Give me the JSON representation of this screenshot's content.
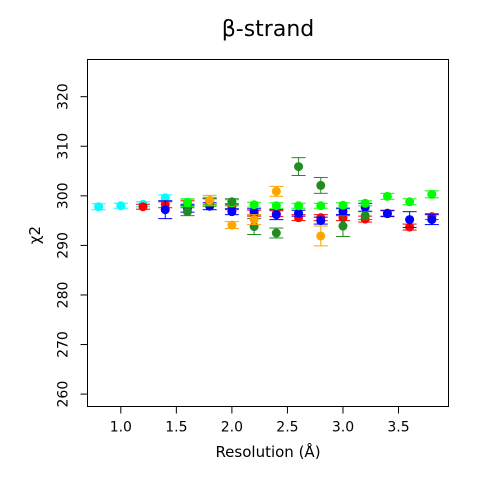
{
  "chart_data": {
    "type": "scatter",
    "title": "β-strand",
    "xlabel": "Resolution (Å)",
    "ylabel": "χ2",
    "xlim": [
      0.7,
      3.95
    ],
    "ylim": [
      257.5,
      327.5
    ],
    "xticks": [
      1.0,
      1.5,
      2.0,
      2.5,
      3.0,
      3.5
    ],
    "xtick_labels": [
      "1.0",
      "1.5",
      "2.0",
      "2.5",
      "3.0",
      "3.5"
    ],
    "yticks": [
      260,
      270,
      280,
      290,
      300,
      310,
      320
    ],
    "ytick_labels": [
      "260",
      "270",
      "280",
      "290",
      "300",
      "310",
      "320"
    ],
    "grid": false,
    "error_bars": true,
    "series": [
      {
        "color": "#00ffff",
        "points": [
          {
            "x": 0.8,
            "y": 297.8,
            "err": 0.6
          },
          {
            "x": 1.0,
            "y": 298.0,
            "err": 0.5
          },
          {
            "x": 1.2,
            "y": 298.3,
            "err": 0.5
          },
          {
            "x": 1.4,
            "y": 299.6,
            "err": 0.6
          },
          {
            "x": 1.6,
            "y": 298.7,
            "err": 0.6
          }
        ]
      },
      {
        "color": "#ff0000",
        "points": [
          {
            "x": 1.2,
            "y": 297.8,
            "err": 0.5
          },
          {
            "x": 1.4,
            "y": 298.2,
            "err": 0.6
          },
          {
            "x": 1.6,
            "y": 298.5,
            "err": 0.5
          },
          {
            "x": 1.8,
            "y": 298.8,
            "err": 0.6
          },
          {
            "x": 2.0,
            "y": 297.8,
            "err": 0.6
          },
          {
            "x": 2.2,
            "y": 296.5,
            "err": 0.6
          },
          {
            "x": 2.4,
            "y": 296.4,
            "err": 0.6
          },
          {
            "x": 2.6,
            "y": 295.6,
            "err": 0.6
          },
          {
            "x": 2.8,
            "y": 295.6,
            "err": 0.6
          },
          {
            "x": 3.0,
            "y": 295.6,
            "err": 0.6
          },
          {
            "x": 3.2,
            "y": 295.3,
            "err": 0.6
          },
          {
            "x": 3.4,
            "y": 296.5,
            "err": 0.6
          },
          {
            "x": 3.6,
            "y": 293.7,
            "err": 0.6
          },
          {
            "x": 3.8,
            "y": 295.8,
            "err": 0.6
          }
        ]
      },
      {
        "color": "#0000ff",
        "points": [
          {
            "x": 1.4,
            "y": 297.2,
            "err": 1.8
          },
          {
            "x": 1.6,
            "y": 297.5,
            "err": 0.8
          },
          {
            "x": 1.8,
            "y": 297.9,
            "err": 0.7
          },
          {
            "x": 2.0,
            "y": 296.8,
            "err": 0.6
          },
          {
            "x": 2.2,
            "y": 296.8,
            "err": 0.6
          },
          {
            "x": 2.4,
            "y": 296.2,
            "err": 1.0
          },
          {
            "x": 2.6,
            "y": 296.5,
            "err": 0.6
          },
          {
            "x": 2.8,
            "y": 295.0,
            "err": 0.7
          },
          {
            "x": 3.0,
            "y": 296.8,
            "err": 0.6
          },
          {
            "x": 3.2,
            "y": 297.7,
            "err": 0.8
          },
          {
            "x": 3.4,
            "y": 296.4,
            "err": 0.6
          },
          {
            "x": 3.6,
            "y": 295.2,
            "err": 1.6
          },
          {
            "x": 3.8,
            "y": 295.2,
            "err": 1.0
          }
        ]
      },
      {
        "color": "#00ff00",
        "points": [
          {
            "x": 1.6,
            "y": 298.6,
            "err": 0.8
          },
          {
            "x": 1.8,
            "y": 299.0,
            "err": 0.7
          },
          {
            "x": 2.0,
            "y": 298.6,
            "err": 0.6
          },
          {
            "x": 2.2,
            "y": 298.2,
            "err": 0.5
          },
          {
            "x": 2.4,
            "y": 298.0,
            "err": 0.6
          },
          {
            "x": 2.6,
            "y": 298.0,
            "err": 0.5
          },
          {
            "x": 2.8,
            "y": 298.0,
            "err": 0.5
          },
          {
            "x": 3.0,
            "y": 298.1,
            "err": 0.5
          },
          {
            "x": 3.2,
            "y": 298.5,
            "err": 0.5
          },
          {
            "x": 3.4,
            "y": 299.9,
            "err": 0.6
          },
          {
            "x": 3.6,
            "y": 298.8,
            "err": 0.6
          },
          {
            "x": 3.8,
            "y": 300.3,
            "err": 0.7
          }
        ]
      },
      {
        "color": "#228b22",
        "points": [
          {
            "x": 1.6,
            "y": 296.8,
            "err": 0.8
          },
          {
            "x": 1.8,
            "y": 298.7,
            "err": 0.8
          },
          {
            "x": 2.0,
            "y": 298.8,
            "err": 0.6
          },
          {
            "x": 2.2,
            "y": 293.8,
            "err": 1.6
          },
          {
            "x": 2.4,
            "y": 292.5,
            "err": 1.0
          },
          {
            "x": 2.6,
            "y": 305.9,
            "err": 1.8
          },
          {
            "x": 2.8,
            "y": 302.1,
            "err": 1.6
          },
          {
            "x": 3.0,
            "y": 293.9,
            "err": 2.1
          },
          {
            "x": 3.2,
            "y": 296.0,
            "err": 0.8
          }
        ]
      },
      {
        "color": "#ffa500",
        "points": [
          {
            "x": 1.8,
            "y": 299.1,
            "err": 1.0
          },
          {
            "x": 2.0,
            "y": 294.1,
            "err": 0.7
          },
          {
            "x": 2.2,
            "y": 295.2,
            "err": 1.0
          },
          {
            "x": 2.4,
            "y": 300.9,
            "err": 1.0
          },
          {
            "x": 2.8,
            "y": 291.9,
            "err": 2.0
          }
        ]
      }
    ]
  }
}
